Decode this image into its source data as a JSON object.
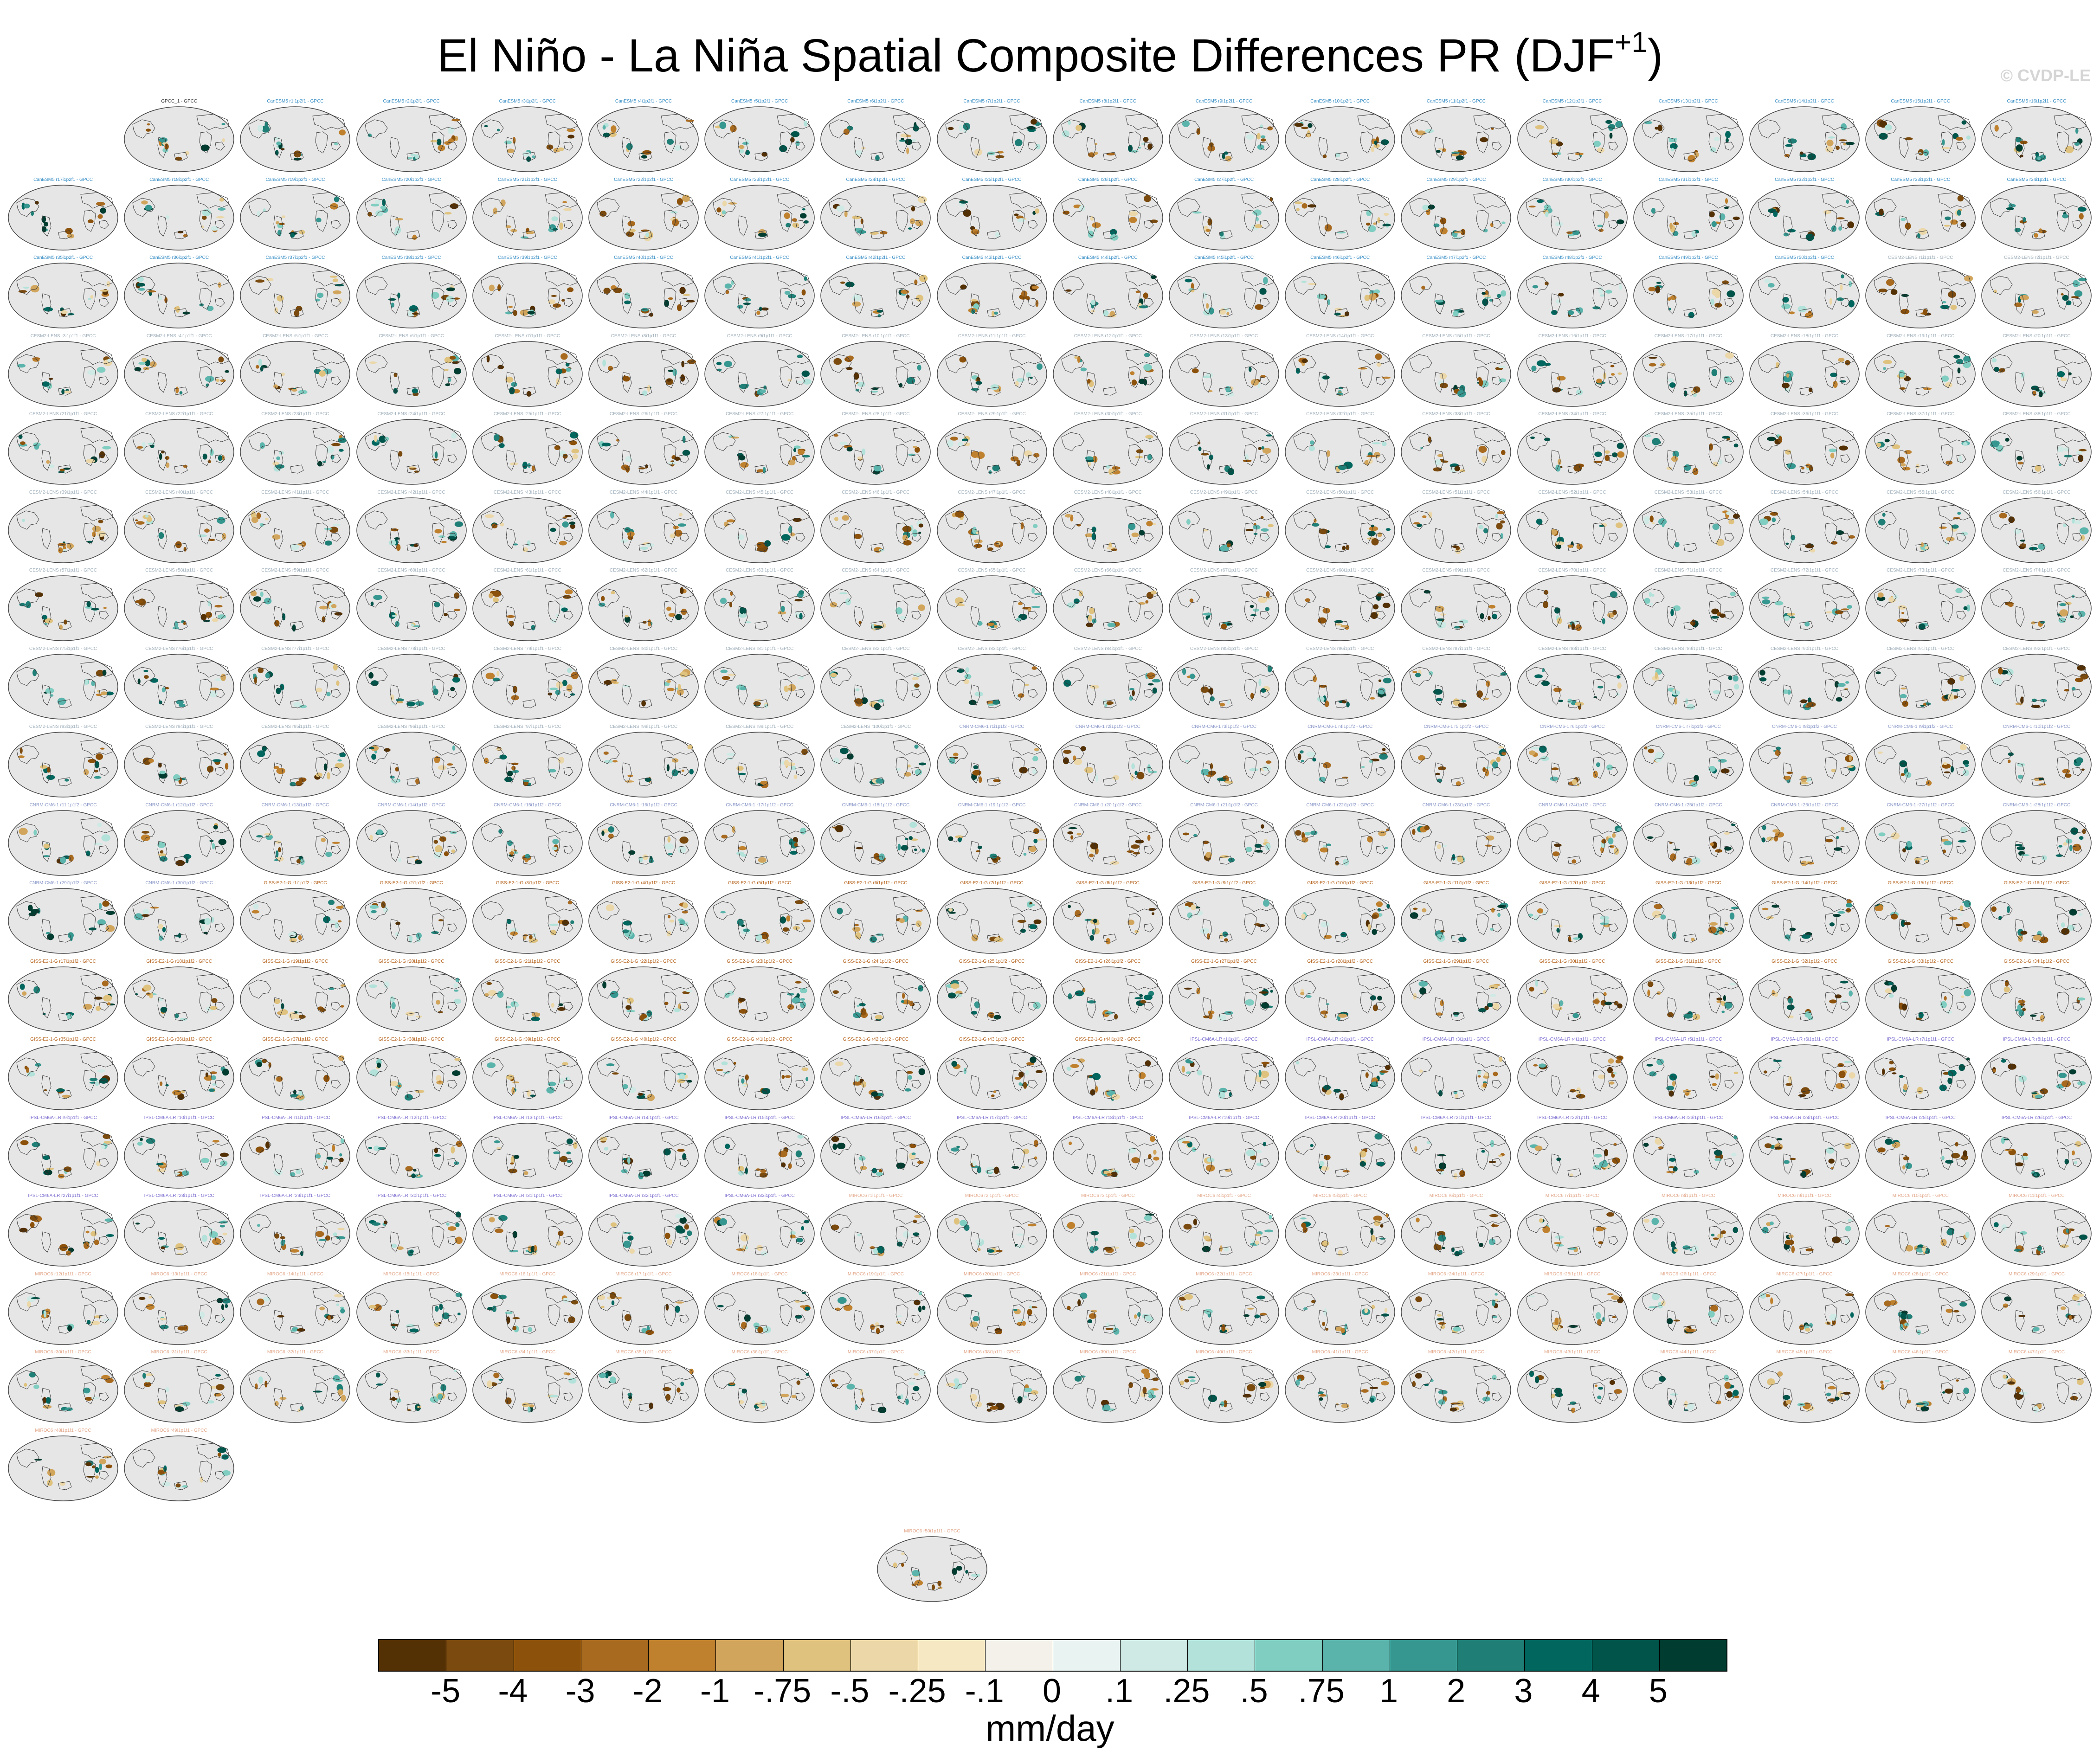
{
  "header": {
    "title_main": "El Niño - La Niña Spatial Composite Differences PR (DJF",
    "title_superscript": "+1",
    "title_close": ")",
    "credit": "© CVDP-LE"
  },
  "panels": {
    "observation_label": "GPCC_1 - GPCC",
    "groups": [
      {
        "model": "CanESM5",
        "count": 50,
        "label_pattern": "CanESM5 r{n}i1p2f1 - GPCC",
        "label_color": "#3a8fc6"
      },
      {
        "model": "CESM2-LENS",
        "count": 100,
        "label_pattern": "CESM2-LENS r{n}i1p1f1 - GPCC",
        "label_color": "#a0b0bc"
      },
      {
        "model": "CNRM-CM6-1",
        "count": 30,
        "label_pattern": "CNRM-CM6-1 r{n}i1p1f2 - GPCC",
        "label_color": "#8a98c8"
      },
      {
        "model": "GISS-E2-1-G",
        "count": 44,
        "label_pattern": "GISS-E2-1-G r{n}i1p1f2 - GPCC",
        "label_color": "#b5621b"
      },
      {
        "model": "IPSL-CM6A-LR",
        "count": 33,
        "label_pattern": "IPSL-CM6A-LR r{n}i1p1f1 - GPCC",
        "label_color": "#7c6fd0"
      },
      {
        "model": "MIROC6",
        "count": 50,
        "label_pattern": "MIROC6 r{n}i1p1f1 - GPCC",
        "label_color": "#e3a98c"
      }
    ]
  },
  "colorbar": {
    "colors": [
      "#543005",
      "#7a4a0e",
      "#8c510a",
      "#a86a1f",
      "#bf812d",
      "#d1a55c",
      "#dfc27d",
      "#ebd7a8",
      "#f6e8c3",
      "#f4f1ea",
      "#e9f4f2",
      "#cfeae5",
      "#b2e2da",
      "#80cdc1",
      "#5ab4ac",
      "#35978f",
      "#1f7f76",
      "#01665e",
      "#00544a",
      "#003c30"
    ],
    "tick_labels": [
      "-5",
      "-4",
      "-3",
      "-2",
      "-1",
      "-.75",
      "-.5",
      "-.25",
      "-.1",
      "0",
      ".1",
      ".25",
      ".5",
      ".75",
      "1",
      "2",
      "3",
      "4",
      "5"
    ],
    "units": "mm/day"
  },
  "chart_data": {
    "type": "heatmap",
    "title": "El Niño - La Niña Spatial Composite Differences PR (DJF+1)",
    "description_panels": "Grid of global precipitation composite-difference maps: 1 observational panel plus 307 large-ensemble member panels, each differenced against GPCC",
    "num_panels": 308,
    "levels": [
      -5,
      -4,
      -3,
      -2,
      -1,
      -0.75,
      -0.5,
      -0.25,
      -0.1,
      0,
      0.1,
      0.25,
      0.5,
      0.75,
      1,
      2,
      3,
      4,
      5
    ],
    "units": "mm/day",
    "legend_placement": "bottom"
  }
}
